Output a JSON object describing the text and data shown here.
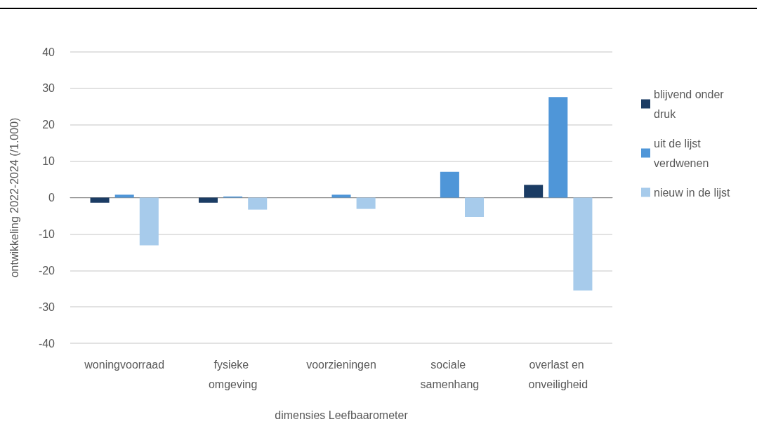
{
  "chart_data": {
    "type": "bar",
    "categories": [
      "woningvoorraad",
      "fysieke omgeving",
      "voorzieningen",
      "sociale samenhang",
      "overlast en onveiligheid"
    ],
    "series": [
      {
        "name": "blijvend onder druk",
        "color": "#1b3c64",
        "values": [
          -1.4,
          -1.4,
          null,
          null,
          3.5
        ]
      },
      {
        "name": "uit de lijst verdwenen",
        "color": "#4f96d8",
        "values": [
          0.8,
          0.3,
          0.8,
          7.1,
          27.6
        ]
      },
      {
        "name": "nieuw in de lijst",
        "color": "#a7cbeb",
        "values": [
          -13.1,
          -3.3,
          -3.1,
          -5.3,
          -25.5
        ]
      }
    ],
    "xlabel": "dimensies Leefbaarometer",
    "ylabel": "ontwikkeling 2022-2024 (/1.000)",
    "ylim": [
      -40,
      40
    ],
    "yticks": [
      -40,
      -30,
      -20,
      -10,
      0,
      10,
      20,
      30,
      40
    ],
    "grid": "y",
    "legend": "right"
  }
}
